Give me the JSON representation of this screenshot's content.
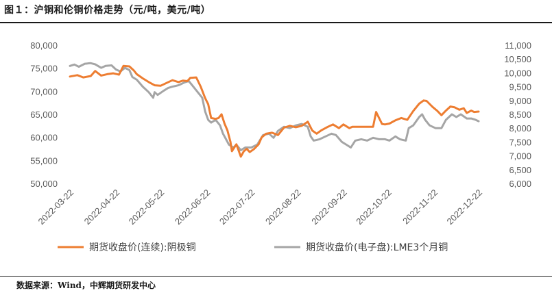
{
  "figure": {
    "title": "图１：沪铜和伦铜价格走势（元/吨，美元/吨）",
    "source": "数据来源：Wind，中辉期货研发中心"
  },
  "chart_data": {
    "type": "line",
    "title": "",
    "xlabel": "",
    "ylabel": "",
    "x_tick_labels": [
      "2022-03-22",
      "2022-04-22",
      "2022-05-22",
      "2022-06-22",
      "2022-07-22",
      "2022-08-22",
      "2022-09-22",
      "2022-10-22",
      "2022-11-22",
      "2022-12-22"
    ],
    "x_range": [
      "2022-03-22",
      "2022-12-22"
    ],
    "y_left": {
      "lim": [
        50000,
        80000
      ],
      "ticks": [
        "50,000",
        "55,000",
        "60,000",
        "65,000",
        "70,000",
        "75,000",
        "80,000"
      ]
    },
    "y_right": {
      "lim": [
        6000,
        11000
      ],
      "ticks": [
        "6,000",
        "6,500",
        "7,000",
        "7,500",
        "8,000",
        "8,500",
        "9,000",
        "9,500",
        "10,000",
        "10,500",
        "11,000"
      ]
    },
    "grid": false,
    "legend_position": "bottom",
    "series": [
      {
        "name": "期货收盘价(连续):阴极铜",
        "axis": "left",
        "color": "#ED7D31",
        "points": [
          [
            "2022-03-22",
            73200
          ],
          [
            "2022-03-27",
            73500
          ],
          [
            "2022-03-31",
            73000
          ],
          [
            "2022-04-05",
            73300
          ],
          [
            "2022-04-08",
            74400
          ],
          [
            "2022-04-12",
            73400
          ],
          [
            "2022-04-16",
            73700
          ],
          [
            "2022-04-20",
            73900
          ],
          [
            "2022-04-24",
            73600
          ],
          [
            "2022-04-27",
            75500
          ],
          [
            "2022-05-01",
            75400
          ],
          [
            "2022-05-04",
            74500
          ],
          [
            "2022-05-06",
            73700
          ],
          [
            "2022-05-10",
            72800
          ],
          [
            "2022-05-14",
            72000
          ],
          [
            "2022-05-18",
            71300
          ],
          [
            "2022-05-22",
            71200
          ],
          [
            "2022-05-26",
            71800
          ],
          [
            "2022-05-30",
            72400
          ],
          [
            "2022-06-03",
            72000
          ],
          [
            "2022-06-06",
            72300
          ],
          [
            "2022-06-09",
            72200
          ],
          [
            "2022-06-11",
            72900
          ],
          [
            "2022-06-15",
            73000
          ],
          [
            "2022-06-18",
            71000
          ],
          [
            "2022-06-21",
            68500
          ],
          [
            "2022-06-23",
            67200
          ],
          [
            "2022-06-25",
            64200
          ],
          [
            "2022-06-28",
            64000
          ],
          [
            "2022-06-30",
            64200
          ],
          [
            "2022-07-02",
            65000
          ],
          [
            "2022-07-04",
            63000
          ],
          [
            "2022-07-06",
            61500
          ],
          [
            "2022-07-08",
            59000
          ],
          [
            "2022-07-09",
            57000
          ],
          [
            "2022-07-12",
            58500
          ],
          [
            "2022-07-15",
            55800
          ],
          [
            "2022-07-17",
            57000
          ],
          [
            "2022-07-19",
            57500
          ],
          [
            "2022-07-21",
            56800
          ],
          [
            "2022-07-24",
            57500
          ],
          [
            "2022-07-27",
            58500
          ],
          [
            "2022-07-29",
            60000
          ],
          [
            "2022-08-01",
            60800
          ],
          [
            "2022-08-05",
            61000
          ],
          [
            "2022-08-09",
            60500
          ],
          [
            "2022-08-13",
            62100
          ],
          [
            "2022-08-17",
            62500
          ],
          [
            "2022-08-21",
            62200
          ],
          [
            "2022-08-25",
            62500
          ],
          [
            "2022-08-29",
            63400
          ],
          [
            "2022-09-01",
            61500
          ],
          [
            "2022-09-04",
            60800
          ],
          [
            "2022-09-07",
            61500
          ],
          [
            "2022-09-11",
            62200
          ],
          [
            "2022-09-15",
            62800
          ],
          [
            "2022-09-19",
            62000
          ],
          [
            "2022-09-22",
            62800
          ],
          [
            "2022-09-26",
            62000
          ],
          [
            "2022-09-28",
            62300
          ],
          [
            "2022-10-01",
            62300
          ],
          [
            "2022-10-12",
            62300
          ],
          [
            "2022-10-14",
            65500
          ],
          [
            "2022-10-16",
            64200
          ],
          [
            "2022-10-18",
            62900
          ],
          [
            "2022-10-20",
            62800
          ],
          [
            "2022-10-23",
            63000
          ],
          [
            "2022-10-27",
            63700
          ],
          [
            "2022-10-31",
            64200
          ],
          [
            "2022-11-04",
            63800
          ],
          [
            "2022-11-08",
            65700
          ],
          [
            "2022-11-12",
            67300
          ],
          [
            "2022-11-15",
            68000
          ],
          [
            "2022-11-17",
            67900
          ],
          [
            "2022-11-21",
            66600
          ],
          [
            "2022-11-24",
            65800
          ],
          [
            "2022-11-27",
            64800
          ],
          [
            "2022-11-30",
            65800
          ],
          [
            "2022-12-03",
            66700
          ],
          [
            "2022-12-06",
            66500
          ],
          [
            "2022-12-09",
            66000
          ],
          [
            "2022-12-12",
            66300
          ],
          [
            "2022-12-14",
            65300
          ],
          [
            "2022-12-17",
            65800
          ],
          [
            "2022-12-19",
            65500
          ],
          [
            "2022-12-22",
            65600
          ]
        ]
      },
      {
        "name": "期货收盘价(电子盘):LME3个月铜",
        "axis": "right",
        "color": "#A5A5A5",
        "points": [
          [
            "2022-03-22",
            10250
          ],
          [
            "2022-03-25",
            10300
          ],
          [
            "2022-03-28",
            10220
          ],
          [
            "2022-04-01",
            10330
          ],
          [
            "2022-04-05",
            10350
          ],
          [
            "2022-04-08",
            10310
          ],
          [
            "2022-04-12",
            10180
          ],
          [
            "2022-04-15",
            10250
          ],
          [
            "2022-04-19",
            10270
          ],
          [
            "2022-04-22",
            10120
          ],
          [
            "2022-04-25",
            10050
          ],
          [
            "2022-04-28",
            10180
          ],
          [
            "2022-05-01",
            10100
          ],
          [
            "2022-05-03",
            9850
          ],
          [
            "2022-05-06",
            9750
          ],
          [
            "2022-05-10",
            9500
          ],
          [
            "2022-05-14",
            9300
          ],
          [
            "2022-05-17",
            9100
          ],
          [
            "2022-05-18",
            9300
          ],
          [
            "2022-05-20",
            9200
          ],
          [
            "2022-05-24",
            9350
          ],
          [
            "2022-05-27",
            9450
          ],
          [
            "2022-05-30",
            9500
          ],
          [
            "2022-06-03",
            9550
          ],
          [
            "2022-06-07",
            9650
          ],
          [
            "2022-06-10",
            9700
          ],
          [
            "2022-06-13",
            9500
          ],
          [
            "2022-06-16",
            9300
          ],
          [
            "2022-06-19",
            9100
          ],
          [
            "2022-06-21",
            8600
          ],
          [
            "2022-06-23",
            8300
          ],
          [
            "2022-06-25",
            8200
          ],
          [
            "2022-06-28",
            8300
          ],
          [
            "2022-07-01",
            8100
          ],
          [
            "2022-07-03",
            7800
          ],
          [
            "2022-07-05",
            7600
          ],
          [
            "2022-07-07",
            7400
          ],
          [
            "2022-07-10",
            7300
          ],
          [
            "2022-07-12",
            7400
          ],
          [
            "2022-07-15",
            7200
          ],
          [
            "2022-07-18",
            7300
          ],
          [
            "2022-07-22",
            7300
          ],
          [
            "2022-07-26",
            7400
          ],
          [
            "2022-07-30",
            7750
          ],
          [
            "2022-08-03",
            7800
          ],
          [
            "2022-08-06",
            7650
          ],
          [
            "2022-08-09",
            7900
          ],
          [
            "2022-08-13",
            8050
          ],
          [
            "2022-08-17",
            8000
          ],
          [
            "2022-08-21",
            8100
          ],
          [
            "2022-08-25",
            8150
          ],
          [
            "2022-08-29",
            8050
          ],
          [
            "2022-08-31",
            7700
          ],
          [
            "2022-09-02",
            7550
          ],
          [
            "2022-09-06",
            7600
          ],
          [
            "2022-09-10",
            7700
          ],
          [
            "2022-09-14",
            7800
          ],
          [
            "2022-09-17",
            7750
          ],
          [
            "2022-09-21",
            7500
          ],
          [
            "2022-09-24",
            7400
          ],
          [
            "2022-09-27",
            7300
          ],
          [
            "2022-09-30",
            7550
          ],
          [
            "2022-10-04",
            7600
          ],
          [
            "2022-10-08",
            7550
          ],
          [
            "2022-10-12",
            7650
          ],
          [
            "2022-10-16",
            7600
          ],
          [
            "2022-10-20",
            7600
          ],
          [
            "2022-10-23",
            7550
          ],
          [
            "2022-10-27",
            7700
          ],
          [
            "2022-10-30",
            7600
          ],
          [
            "2022-11-03",
            7550
          ],
          [
            "2022-11-05",
            8000
          ],
          [
            "2022-11-08",
            8100
          ],
          [
            "2022-11-12",
            8400
          ],
          [
            "2022-11-14",
            8500
          ],
          [
            "2022-11-16",
            8300
          ],
          [
            "2022-11-19",
            8100
          ],
          [
            "2022-11-23",
            8000
          ],
          [
            "2022-11-27",
            8000
          ],
          [
            "2022-11-30",
            8300
          ],
          [
            "2022-12-04",
            8500
          ],
          [
            "2022-12-07",
            8400
          ],
          [
            "2022-12-10",
            8500
          ],
          [
            "2022-12-14",
            8350
          ],
          [
            "2022-12-17",
            8350
          ],
          [
            "2022-12-20",
            8300
          ],
          [
            "2022-12-22",
            8250
          ]
        ]
      }
    ]
  }
}
